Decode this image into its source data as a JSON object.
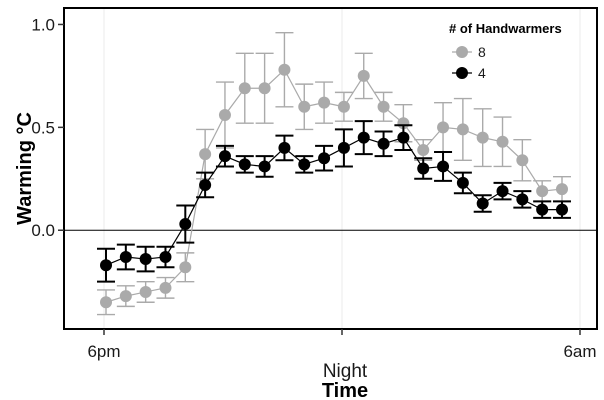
{
  "chart_data": {
    "type": "line",
    "xlabel": "Time",
    "x_sublabel": "Night",
    "ylabel": "Warming °C",
    "x_ticks": [
      "6pm",
      "6am"
    ],
    "y_ticks": [
      "0.0",
      "0.5",
      "1.0"
    ],
    "ylim": [
      -0.48,
      1.08
    ],
    "reference_line": 0,
    "legend": {
      "title": "# of Handwarmers",
      "placement": "top-right",
      "entries": [
        "8",
        "4"
      ]
    },
    "series": [
      {
        "name": "8",
        "color": "#aaaaaa",
        "points": [
          {
            "y": -0.35,
            "err": 0.06
          },
          {
            "y": -0.32,
            "err": 0.05
          },
          {
            "y": -0.3,
            "err": 0.05
          },
          {
            "y": -0.28,
            "err": 0.05
          },
          {
            "y": -0.18,
            "err": 0.07
          },
          {
            "y": 0.37,
            "err": 0.12
          },
          {
            "y": 0.56,
            "err": 0.16
          },
          {
            "y": 0.69,
            "err": 0.17
          },
          {
            "y": 0.69,
            "err": 0.17
          },
          {
            "y": 0.78,
            "err": 0.18
          },
          {
            "y": 0.6,
            "err": 0.11
          },
          {
            "y": 0.62,
            "err": 0.1
          },
          {
            "y": 0.6,
            "err": 0.07
          },
          {
            "y": 0.75,
            "err": 0.11
          },
          {
            "y": 0.6,
            "err": 0.07
          },
          {
            "y": 0.52,
            "err": 0.09
          },
          {
            "y": 0.39,
            "err": 0.05
          },
          {
            "y": 0.5,
            "err": 0.12
          },
          {
            "y": 0.49,
            "err": 0.15
          },
          {
            "y": 0.45,
            "err": 0.14
          },
          {
            "y": 0.43,
            "err": 0.12
          },
          {
            "y": 0.34,
            "err": 0.1
          },
          {
            "y": 0.19,
            "err": 0.05
          },
          {
            "y": 0.2,
            "err": 0.06
          }
        ]
      },
      {
        "name": "4",
        "color": "#000000",
        "points": [
          {
            "y": -0.17,
            "err": 0.08
          },
          {
            "y": -0.13,
            "err": 0.06
          },
          {
            "y": -0.14,
            "err": 0.06
          },
          {
            "y": -0.13,
            "err": 0.05
          },
          {
            "y": 0.03,
            "err": 0.09
          },
          {
            "y": 0.22,
            "err": 0.06
          },
          {
            "y": 0.36,
            "err": 0.05
          },
          {
            "y": 0.32,
            "err": 0.04
          },
          {
            "y": 0.31,
            "err": 0.05
          },
          {
            "y": 0.4,
            "err": 0.06
          },
          {
            "y": 0.32,
            "err": 0.04
          },
          {
            "y": 0.35,
            "err": 0.06
          },
          {
            "y": 0.4,
            "err": 0.09
          },
          {
            "y": 0.45,
            "err": 0.08
          },
          {
            "y": 0.42,
            "err": 0.06
          },
          {
            "y": 0.45,
            "err": 0.06
          },
          {
            "y": 0.3,
            "err": 0.05
          },
          {
            "y": 0.31,
            "err": 0.07
          },
          {
            "y": 0.23,
            "err": 0.05
          },
          {
            "y": 0.13,
            "err": 0.04
          },
          {
            "y": 0.19,
            "err": 0.04
          },
          {
            "y": 0.15,
            "err": 0.04
          },
          {
            "y": 0.1,
            "err": 0.04
          },
          {
            "y": 0.1,
            "err": 0.04
          }
        ]
      }
    ]
  }
}
